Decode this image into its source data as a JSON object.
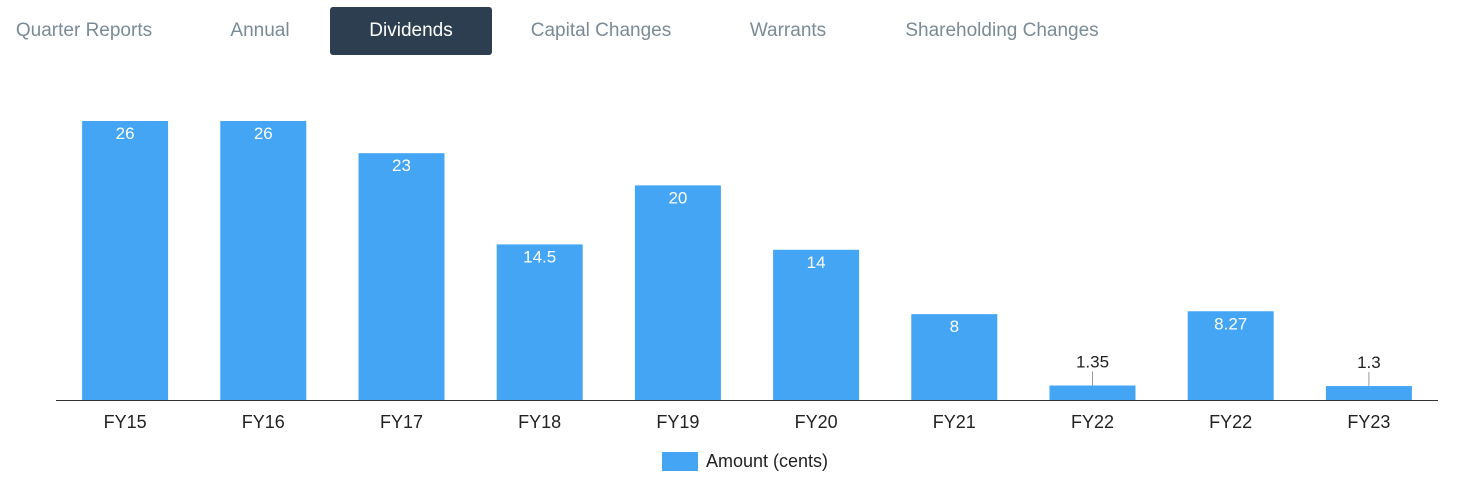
{
  "tabs": [
    {
      "label": "Quarter Reports",
      "active": false
    },
    {
      "label": "Annual",
      "active": false
    },
    {
      "label": "Dividends",
      "active": true
    },
    {
      "label": "Capital Changes",
      "active": false
    },
    {
      "label": "Warrants",
      "active": false
    },
    {
      "label": "Shareholding Changes",
      "active": false
    }
  ],
  "colors": {
    "bar": "#44a5f5",
    "active_tab": "#2c3e50",
    "tab_text": "#7a8b98"
  },
  "chart_data": {
    "type": "bar",
    "categories": [
      "FY15",
      "FY16",
      "FY17",
      "FY18",
      "FY19",
      "FY20",
      "FY21",
      "FY22",
      "FY22",
      "FY23"
    ],
    "series": [
      {
        "name": "Amount (cents)",
        "values": [
          26,
          26,
          23,
          14.5,
          20,
          14,
          8,
          1.35,
          8.27,
          1.3
        ],
        "color": "#44a5f5"
      }
    ],
    "data_labels": [
      "26",
      "26",
      "23",
      "14.5",
      "20",
      "14",
      "8",
      "1.35",
      "8.27",
      "1.3"
    ],
    "ylim": [
      0,
      26
    ],
    "grid": false,
    "legend_position": "bottom"
  }
}
